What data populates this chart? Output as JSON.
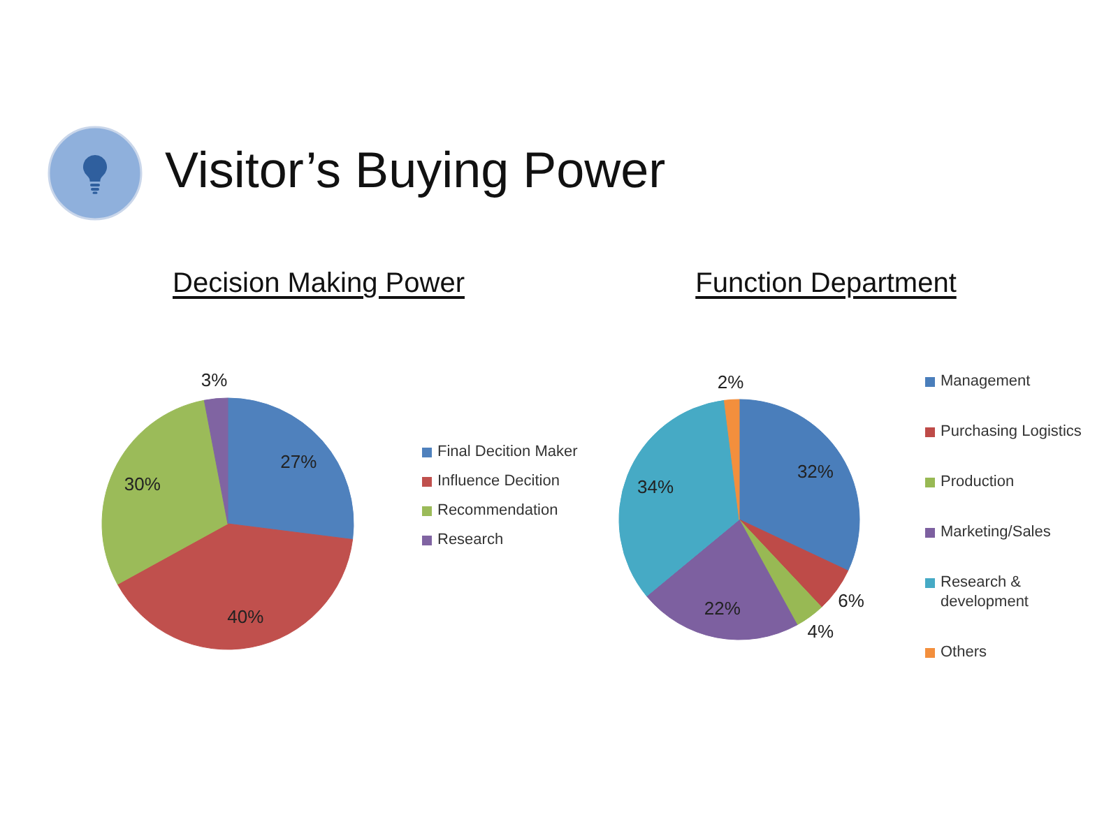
{
  "chart_data": [
    {
      "type": "other",
      "title": "Visitor’s Buying Power"
    },
    {
      "type": "pie",
      "title": "Decision Making Power",
      "categories": [
        "Final Decition Maker",
        "Influence Decition",
        "Recommendation",
        "Research"
      ],
      "values": [
        27,
        40,
        30,
        3
      ],
      "colors": [
        "#4f81bd",
        "#c0504d",
        "#9bbb59",
        "#8064a2"
      ],
      "value_labels": [
        "27%",
        "40%",
        "30%",
        "3%"
      ],
      "legend": "right"
    },
    {
      "type": "pie",
      "title": "Function Department",
      "categories": [
        "Management",
        "Purchasing Logistics",
        "Production",
        "Marketing/Sales",
        "Research & development",
        "Others"
      ],
      "values": [
        32,
        6,
        4,
        22,
        34,
        2
      ],
      "colors": [
        "#4a7ebb",
        "#be4b48",
        "#98b954",
        "#7d60a0",
        "#46aac5",
        "#f38f3d"
      ],
      "value_labels": [
        "32%",
        "6%",
        "4%",
        "22%",
        "34%",
        "2%"
      ],
      "legend": "right"
    }
  ]
}
